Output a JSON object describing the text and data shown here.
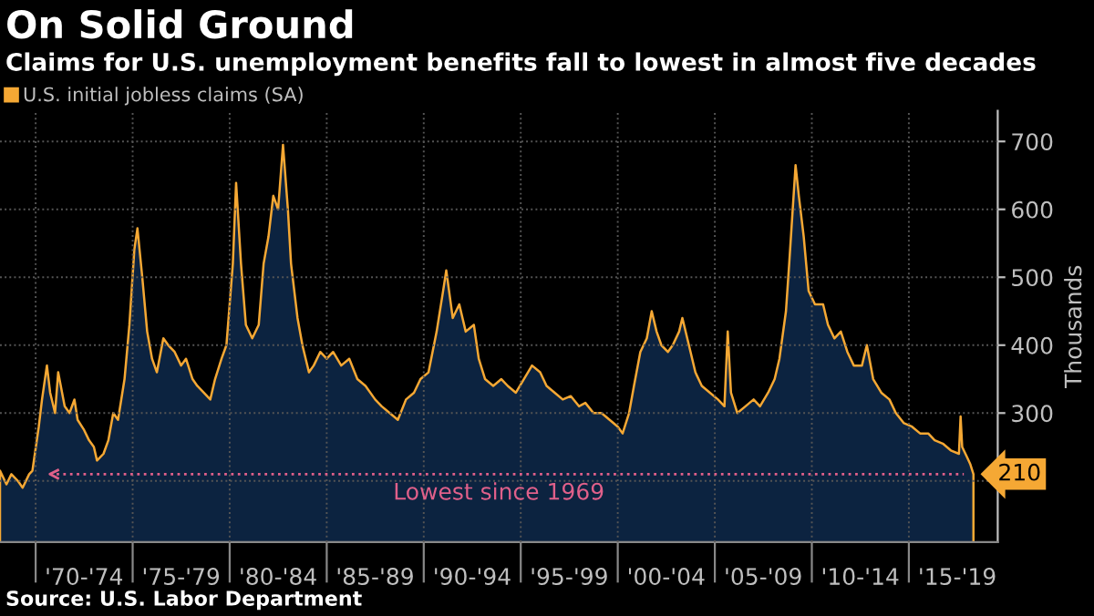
{
  "chart_data": {
    "type": "area",
    "title": "On Solid Ground",
    "subtitle": "Claims for U.S. unemployment benefits fall to lowest in almost five decades",
    "ylabel": "Thousands",
    "x": [
      "1968-03",
      "1968-07",
      "1968-10",
      "1969-02",
      "1969-05",
      "1969-09",
      "1969-11",
      "1970-03",
      "1970-05",
      "1970-08",
      "1970-10",
      "1971-01",
      "1971-03",
      "1971-07",
      "1971-10",
      "1972-01",
      "1972-03",
      "1972-07",
      "1972-10",
      "1973-01",
      "1973-03",
      "1973-07",
      "1973-10",
      "1974-01",
      "1974-04",
      "1974-08",
      "1974-11",
      "1975-02",
      "1975-04",
      "1975-07",
      "1975-10",
      "1976-01",
      "1976-04",
      "1976-08",
      "1976-11",
      "1977-03",
      "1977-07",
      "1977-10",
      "1978-02",
      "1978-05",
      "1978-09",
      "1979-01",
      "1979-04",
      "1979-08",
      "1979-11",
      "1980-03",
      "1980-05",
      "1980-08",
      "1980-11",
      "1981-03",
      "1981-07",
      "1981-10",
      "1982-01",
      "1982-04",
      "1982-07",
      "1982-10",
      "1983-01",
      "1983-03",
      "1983-07",
      "1983-10",
      "1984-02",
      "1984-05",
      "1984-09",
      "1985-01",
      "1985-05",
      "1985-10",
      "1986-03",
      "1986-08",
      "1987-01",
      "1987-07",
      "1987-11",
      "1988-04",
      "1988-09",
      "1989-02",
      "1989-07",
      "1989-11",
      "1990-04",
      "1990-09",
      "1991-01",
      "1991-03",
      "1991-07",
      "1991-11",
      "1992-03",
      "1992-08",
      "1992-11",
      "1993-03",
      "1993-08",
      "1994-01",
      "1994-05",
      "1994-10",
      "1995-03",
      "1995-08",
      "1996-01",
      "1996-05",
      "1996-10",
      "1997-03",
      "1997-08",
      "1998-01",
      "1998-05",
      "1998-10",
      "1999-03",
      "1999-08",
      "2000-01",
      "2000-04",
      "2000-08",
      "2000-11",
      "2001-03",
      "2001-07",
      "2001-10",
      "2002-01",
      "2002-04",
      "2002-08",
      "2002-11",
      "2003-03",
      "2003-05",
      "2003-09",
      "2004-01",
      "2004-05",
      "2004-10",
      "2005-03",
      "2005-07",
      "2005-09",
      "2005-11",
      "2006-03",
      "2006-08",
      "2007-01",
      "2007-05",
      "2007-10",
      "2008-02",
      "2008-05",
      "2008-09",
      "2008-11",
      "2009-03",
      "2009-05",
      "2009-08",
      "2009-11",
      "2010-03",
      "2010-08",
      "2010-11",
      "2011-03",
      "2011-07",
      "2011-11",
      "2012-03",
      "2012-08",
      "2012-11",
      "2013-03",
      "2013-08",
      "2014-01",
      "2014-05",
      "2014-10",
      "2015-03",
      "2015-08",
      "2016-01",
      "2016-05",
      "2016-10",
      "2017-03",
      "2017-08",
      "2017-09",
      "2017-10",
      "2018-01",
      "2018-03",
      "2018-05"
    ],
    "series": [
      {
        "name": "U.S. initial jobless claims (SA)",
        "color": "#f5a834",
        "values": [
          215,
          195,
          210,
          200,
          190,
          210,
          215,
          280,
          320,
          370,
          330,
          300,
          360,
          310,
          300,
          320,
          290,
          275,
          260,
          250,
          230,
          240,
          260,
          300,
          290,
          350,
          430,
          540,
          572,
          500,
          420,
          380,
          360,
          410,
          400,
          390,
          370,
          380,
          350,
          340,
          330,
          320,
          350,
          380,
          400,
          520,
          639,
          520,
          430,
          410,
          430,
          520,
          560,
          620,
          600,
          695,
          600,
          520,
          440,
          400,
          360,
          370,
          390,
          380,
          390,
          370,
          380,
          350,
          340,
          320,
          310,
          300,
          290,
          320,
          330,
          350,
          360,
          420,
          480,
          510,
          440,
          460,
          420,
          430,
          380,
          350,
          340,
          350,
          340,
          330,
          350,
          370,
          360,
          340,
          330,
          320,
          325,
          310,
          315,
          300,
          300,
          290,
          280,
          270,
          300,
          340,
          390,
          410,
          450,
          420,
          400,
          390,
          400,
          420,
          440,
          400,
          360,
          340,
          330,
          320,
          310,
          420,
          330,
          300,
          310,
          320,
          310,
          330,
          350,
          380,
          450,
          520,
          665,
          620,
          560,
          480,
          460,
          460,
          430,
          410,
          420,
          390,
          370,
          370,
          400,
          350,
          330,
          320,
          300,
          285,
          280,
          270,
          270,
          260,
          255,
          245,
          240,
          295,
          250,
          235,
          225,
          210
        ]
      }
    ],
    "xlim": [
      "1968-03",
      "2019-08"
    ],
    "xticks": [
      {
        "value": "1970-01",
        "label": null
      },
      {
        "value": "1972-07",
        "label": "'70-'74"
      },
      {
        "value": "1975-01",
        "label": null
      },
      {
        "value": "1977-07",
        "label": "'75-'79"
      },
      {
        "value": "1980-01",
        "label": null
      },
      {
        "value": "1982-07",
        "label": "'80-'84"
      },
      {
        "value": "1985-01",
        "label": null
      },
      {
        "value": "1987-07",
        "label": "'85-'89"
      },
      {
        "value": "1990-01",
        "label": null
      },
      {
        "value": "1992-07",
        "label": "'90-'94"
      },
      {
        "value": "1995-01",
        "label": null
      },
      {
        "value": "1997-07",
        "label": "'95-'99"
      },
      {
        "value": "2000-01",
        "label": null
      },
      {
        "value": "2002-07",
        "label": "'00-'04"
      },
      {
        "value": "2005-01",
        "label": null
      },
      {
        "value": "2007-07",
        "label": "'05-'09"
      },
      {
        "value": "2010-01",
        "label": null
      },
      {
        "value": "2012-07",
        "label": "'10-'14"
      },
      {
        "value": "2015-01",
        "label": null
      },
      {
        "value": "2017-07",
        "label": "'15-'19"
      }
    ],
    "ylim": [
      110,
      745
    ],
    "yticks": [
      {
        "value": 200,
        "label": null
      },
      300,
      400,
      500,
      600,
      700
    ],
    "grid": true,
    "legend": "top left",
    "ref_lines": [
      {
        "axis": "y",
        "value": 210,
        "label": "Lowest since 1969",
        "color": "#e0608a",
        "line_style": "dotted"
      }
    ],
    "annotations": [
      {
        "text": "210",
        "x": "2018-05",
        "y": 210
      },
      "Source: U.S. Labor Department"
    ]
  }
}
